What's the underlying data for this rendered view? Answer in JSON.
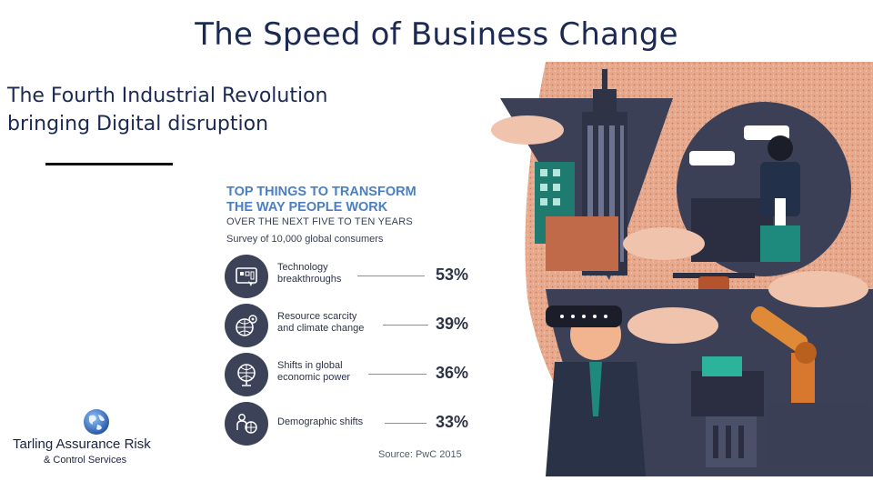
{
  "slide": {
    "title": "The Speed of Business Change",
    "subtitle_line1": "The Fourth Industrial Revolution",
    "subtitle_line2": "bringing Digital disruption"
  },
  "infographic": {
    "title_line1": "TOP THINGS TO TRANSFORM",
    "title_line2": "THE WAY PEOPLE WORK",
    "period": "OVER THE NEXT FIVE TO TEN YEARS",
    "survey": "Survey of 10,000 global consumers",
    "items": [
      {
        "line1": "Technology",
        "line2": "breakthroughs",
        "value": "53%",
        "icon": "technology-icon"
      },
      {
        "line1": "Resource scarcity",
        "line2": "and climate change",
        "value": "39%",
        "icon": "resource-globe-icon"
      },
      {
        "line1": "Shifts in global",
        "line2": "economic power",
        "value": "36%",
        "icon": "economic-globe-icon"
      },
      {
        "line1": "Demographic shifts",
        "line2": "",
        "value": "33%",
        "icon": "demographic-icon"
      }
    ],
    "source": "Source: PwC 2015",
    "accent_color": "#4b7fc1",
    "circle_color": "#3c4358"
  },
  "logo": {
    "name": "Tarling Assurance Risk",
    "sub": "& Control Services"
  }
}
